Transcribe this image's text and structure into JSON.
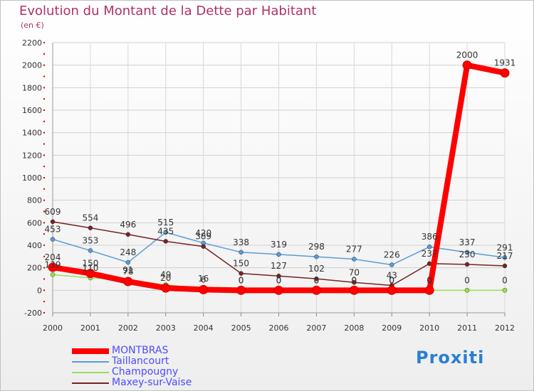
{
  "header": {
    "title": "Evolution du Montant de la Dette par Habitant",
    "unit": "(en €)"
  },
  "logo": {
    "text": "Proxiti"
  },
  "chart_data": {
    "type": "line",
    "categories": [
      "2000",
      "2001",
      "2002",
      "2003",
      "2004",
      "2005",
      "2006",
      "2007",
      "2008",
      "2009",
      "2010",
      "2011",
      "2012"
    ],
    "ylim": [
      -200,
      2200
    ],
    "yticks": [
      -200,
      0,
      200,
      400,
      600,
      800,
      1000,
      1200,
      1400,
      1600,
      1800,
      2000,
      2200
    ],
    "grid": true,
    "legend_position": "bottom-left",
    "series": [
      {
        "name": "MONTBRAS",
        "color": "#ff0000",
        "values": [
          204,
          150,
          78,
          20,
          6,
          0,
          0,
          0,
          0,
          0,
          0,
          2000,
          1931
        ],
        "labels": [
          "204",
          "150",
          "78",
          "20",
          "6",
          "0",
          "0",
          "0",
          "0",
          "0",
          "0",
          "2000",
          "1931"
        ]
      },
      {
        "name": "Taillancourt",
        "color": "#5b9bd5",
        "values": [
          453,
          353,
          248,
          515,
          420,
          338,
          319,
          298,
          277,
          226,
          386,
          337,
          291
        ],
        "labels": [
          "453",
          "353",
          "248",
          "515",
          "420",
          "338",
          "319",
          "298",
          "277",
          "226",
          "386",
          "337",
          "291"
        ]
      },
      {
        "name": "Champougny",
        "color": "#99dd55",
        "values": [
          139,
          110,
          91,
          49,
          16,
          0,
          0,
          0,
          0,
          0,
          0,
          0,
          0
        ],
        "labels": [
          "139",
          "110",
          "91",
          "49",
          "16",
          "0",
          "0",
          "0",
          "0",
          "0",
          "0",
          "0",
          "0"
        ]
      },
      {
        "name": "Maxey-sur-Vaise",
        "color": "#772222",
        "values": [
          609,
          554,
          496,
          435,
          389,
          150,
          127,
          102,
          70,
          43,
          237,
          230,
          217
        ],
        "labels": [
          "609",
          "554",
          "496",
          "435",
          "389",
          "150",
          "127",
          "102",
          "70",
          "43",
          "237",
          "230",
          "217"
        ]
      }
    ]
  }
}
